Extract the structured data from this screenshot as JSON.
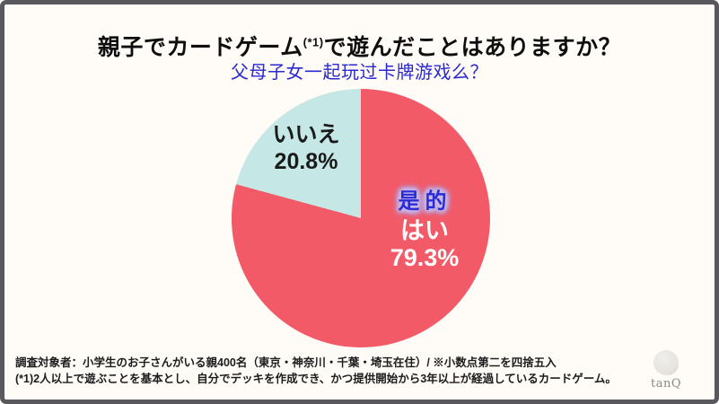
{
  "colors": {
    "background": "#fffbf7",
    "frame": "#59585c",
    "subtitle": "#2a2ad0",
    "annotation": "#2b2bd6"
  },
  "title": {
    "part1": "親子でカードゲーム",
    "sup": "(*1)",
    "part2": "で遊んだことはありますか？"
  },
  "subtitle": "父母子女一起玩过卡牌游戏么？",
  "chart_data": {
    "type": "pie",
    "title": "親子でカードゲーム(*1)で遊んだことはありますか？",
    "start_angle_deg": 0,
    "direction": "clockwise",
    "segments": [
      {
        "label": "はい",
        "value": 79.3,
        "value_label": "79.3%",
        "color": "#f25a68",
        "label_color": "#ffffff"
      },
      {
        "label": "いいえ",
        "value": 20.8,
        "value_label": "20.8%",
        "color": "#c5e8e6",
        "label_color": "#1a1a1a"
      }
    ],
    "annotation": "是的",
    "legend": "none",
    "note": "※小数点第二を四捨五入"
  },
  "footer": {
    "line1": "調査対象者：小学生のお子さんがいる親400名（東京・神奈川・千葉・埼玉在住）/ ※小数点第二を四捨五入",
    "line2": "(*1)2人以上で遊ぶことを基本とし、自分でデッキを作成でき、かつ提供開始から3年以上が経過しているカードゲーム。"
  },
  "logo": {
    "text": "tanQ"
  }
}
